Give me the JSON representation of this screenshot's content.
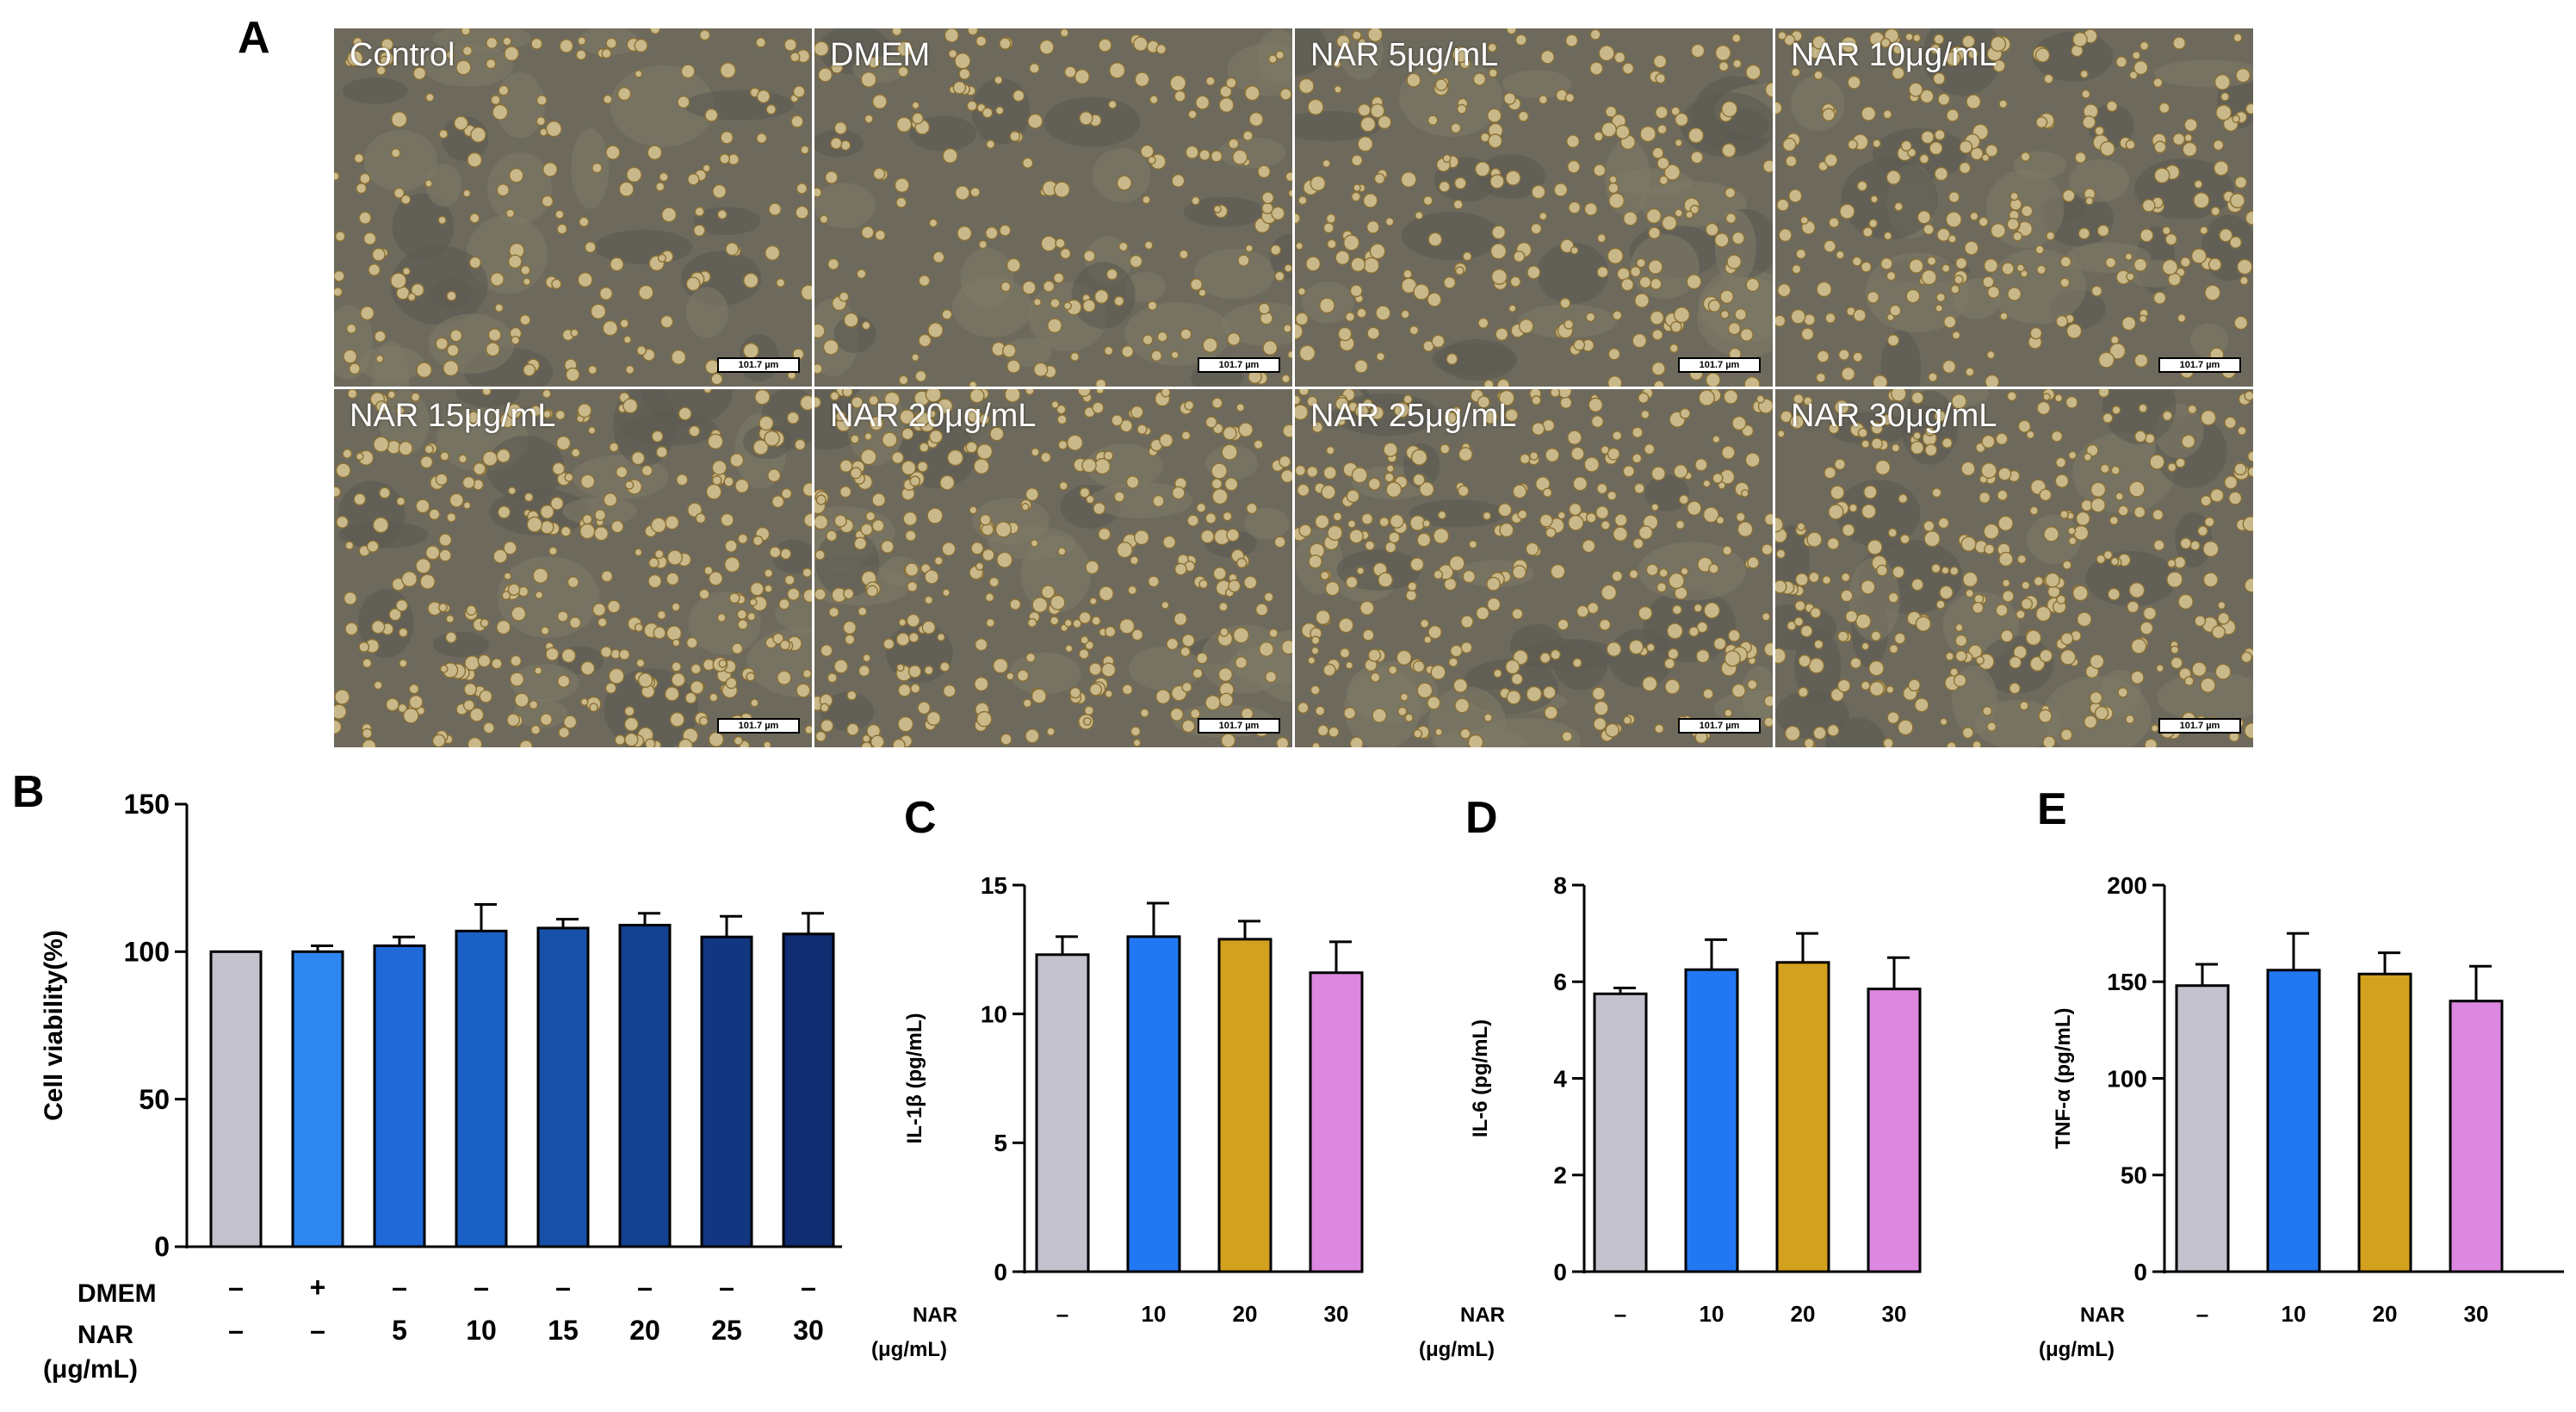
{
  "panels": {
    "A": "A",
    "B": "B",
    "C": "C",
    "D": "D",
    "E": "E"
  },
  "micrographs": [
    {
      "label": "Control",
      "scale": "101.7 µm"
    },
    {
      "label": "DMEM",
      "scale": "101.7 µm"
    },
    {
      "label": "NAR 5μg/mL",
      "scale": "101.7 µm"
    },
    {
      "label": "NAR 10μg/mL",
      "scale": "101.7 µm"
    },
    {
      "label": "NAR 15μg/mL",
      "scale": "101.7 µm"
    },
    {
      "label": "NAR 20μg/mL",
      "scale": "101.7 µm"
    },
    {
      "label": "NAR 25μg/mL",
      "scale": "101.7 µm"
    },
    {
      "label": "NAR 30μg/mL",
      "scale": "101.7 µm"
    }
  ],
  "chart_data": [
    {
      "id": "B",
      "type": "bar",
      "ylabel": "Cell viability(%)",
      "ylim": [
        0,
        150
      ],
      "yticks": [
        0,
        50,
        100,
        150
      ],
      "row_labels": [
        "DMEM",
        "NAR",
        "(μg/mL)"
      ],
      "rows": [
        [
          "–",
          "+",
          "–",
          "–",
          "–",
          "–",
          "–",
          "–"
        ],
        [
          "–",
          "–",
          "5",
          "10",
          "15",
          "20",
          "25",
          "30"
        ]
      ],
      "values": [
        100,
        100,
        102,
        107,
        108,
        109,
        105,
        106
      ],
      "errors": [
        0,
        2,
        3,
        9,
        3,
        4,
        7,
        7
      ],
      "colors": [
        "#c3c2cc",
        "#2e86f0",
        "#1f69d8",
        "#1b60c5",
        "#1750a8",
        "#14418f",
        "#133680",
        "#0f2d70"
      ]
    },
    {
      "id": "C",
      "type": "bar",
      "ylabel": "IL-1β (pg/mL)",
      "ylim": [
        0,
        15
      ],
      "yticks": [
        0,
        5,
        10,
        15
      ],
      "row_labels": [
        "NAR",
        "(μg/mL)"
      ],
      "rows": [
        [
          "–",
          "10",
          "20",
          "30"
        ]
      ],
      "values": [
        12.3,
        13.0,
        12.9,
        11.6
      ],
      "errors": [
        0.7,
        1.3,
        0.7,
        1.2
      ],
      "colors": [
        "#c3c2cc",
        "#2278f2",
        "#d4a11e",
        "#dc88e0"
      ]
    },
    {
      "id": "D",
      "type": "bar",
      "ylabel": "IL-6 (pg/mL)",
      "ylim": [
        0,
        8
      ],
      "yticks": [
        0,
        2,
        4,
        6,
        8
      ],
      "row_labels": [
        "NAR",
        "(μg/mL)"
      ],
      "rows": [
        [
          "–",
          "10",
          "20",
          "30"
        ]
      ],
      "values": [
        5.75,
        6.25,
        6.4,
        5.85
      ],
      "errors": [
        0.12,
        0.62,
        0.6,
        0.65
      ],
      "colors": [
        "#c3c2cc",
        "#2278f2",
        "#d4a11e",
        "#dc88e0"
      ]
    },
    {
      "id": "E",
      "type": "bar",
      "ylabel": "TNF-α (pg/mL)",
      "ylim": [
        0,
        200
      ],
      "yticks": [
        0,
        50,
        100,
        150,
        200
      ],
      "row_labels": [
        "NAR",
        "(μg/mL)"
      ],
      "rows": [
        [
          "–",
          "10",
          "20",
          "30"
        ]
      ],
      "values": [
        148,
        156,
        154,
        140
      ],
      "errors": [
        11,
        19,
        11,
        18
      ],
      "colors": [
        "#c3c2cc",
        "#2278f2",
        "#d4a11e",
        "#dc88e0"
      ]
    }
  ]
}
